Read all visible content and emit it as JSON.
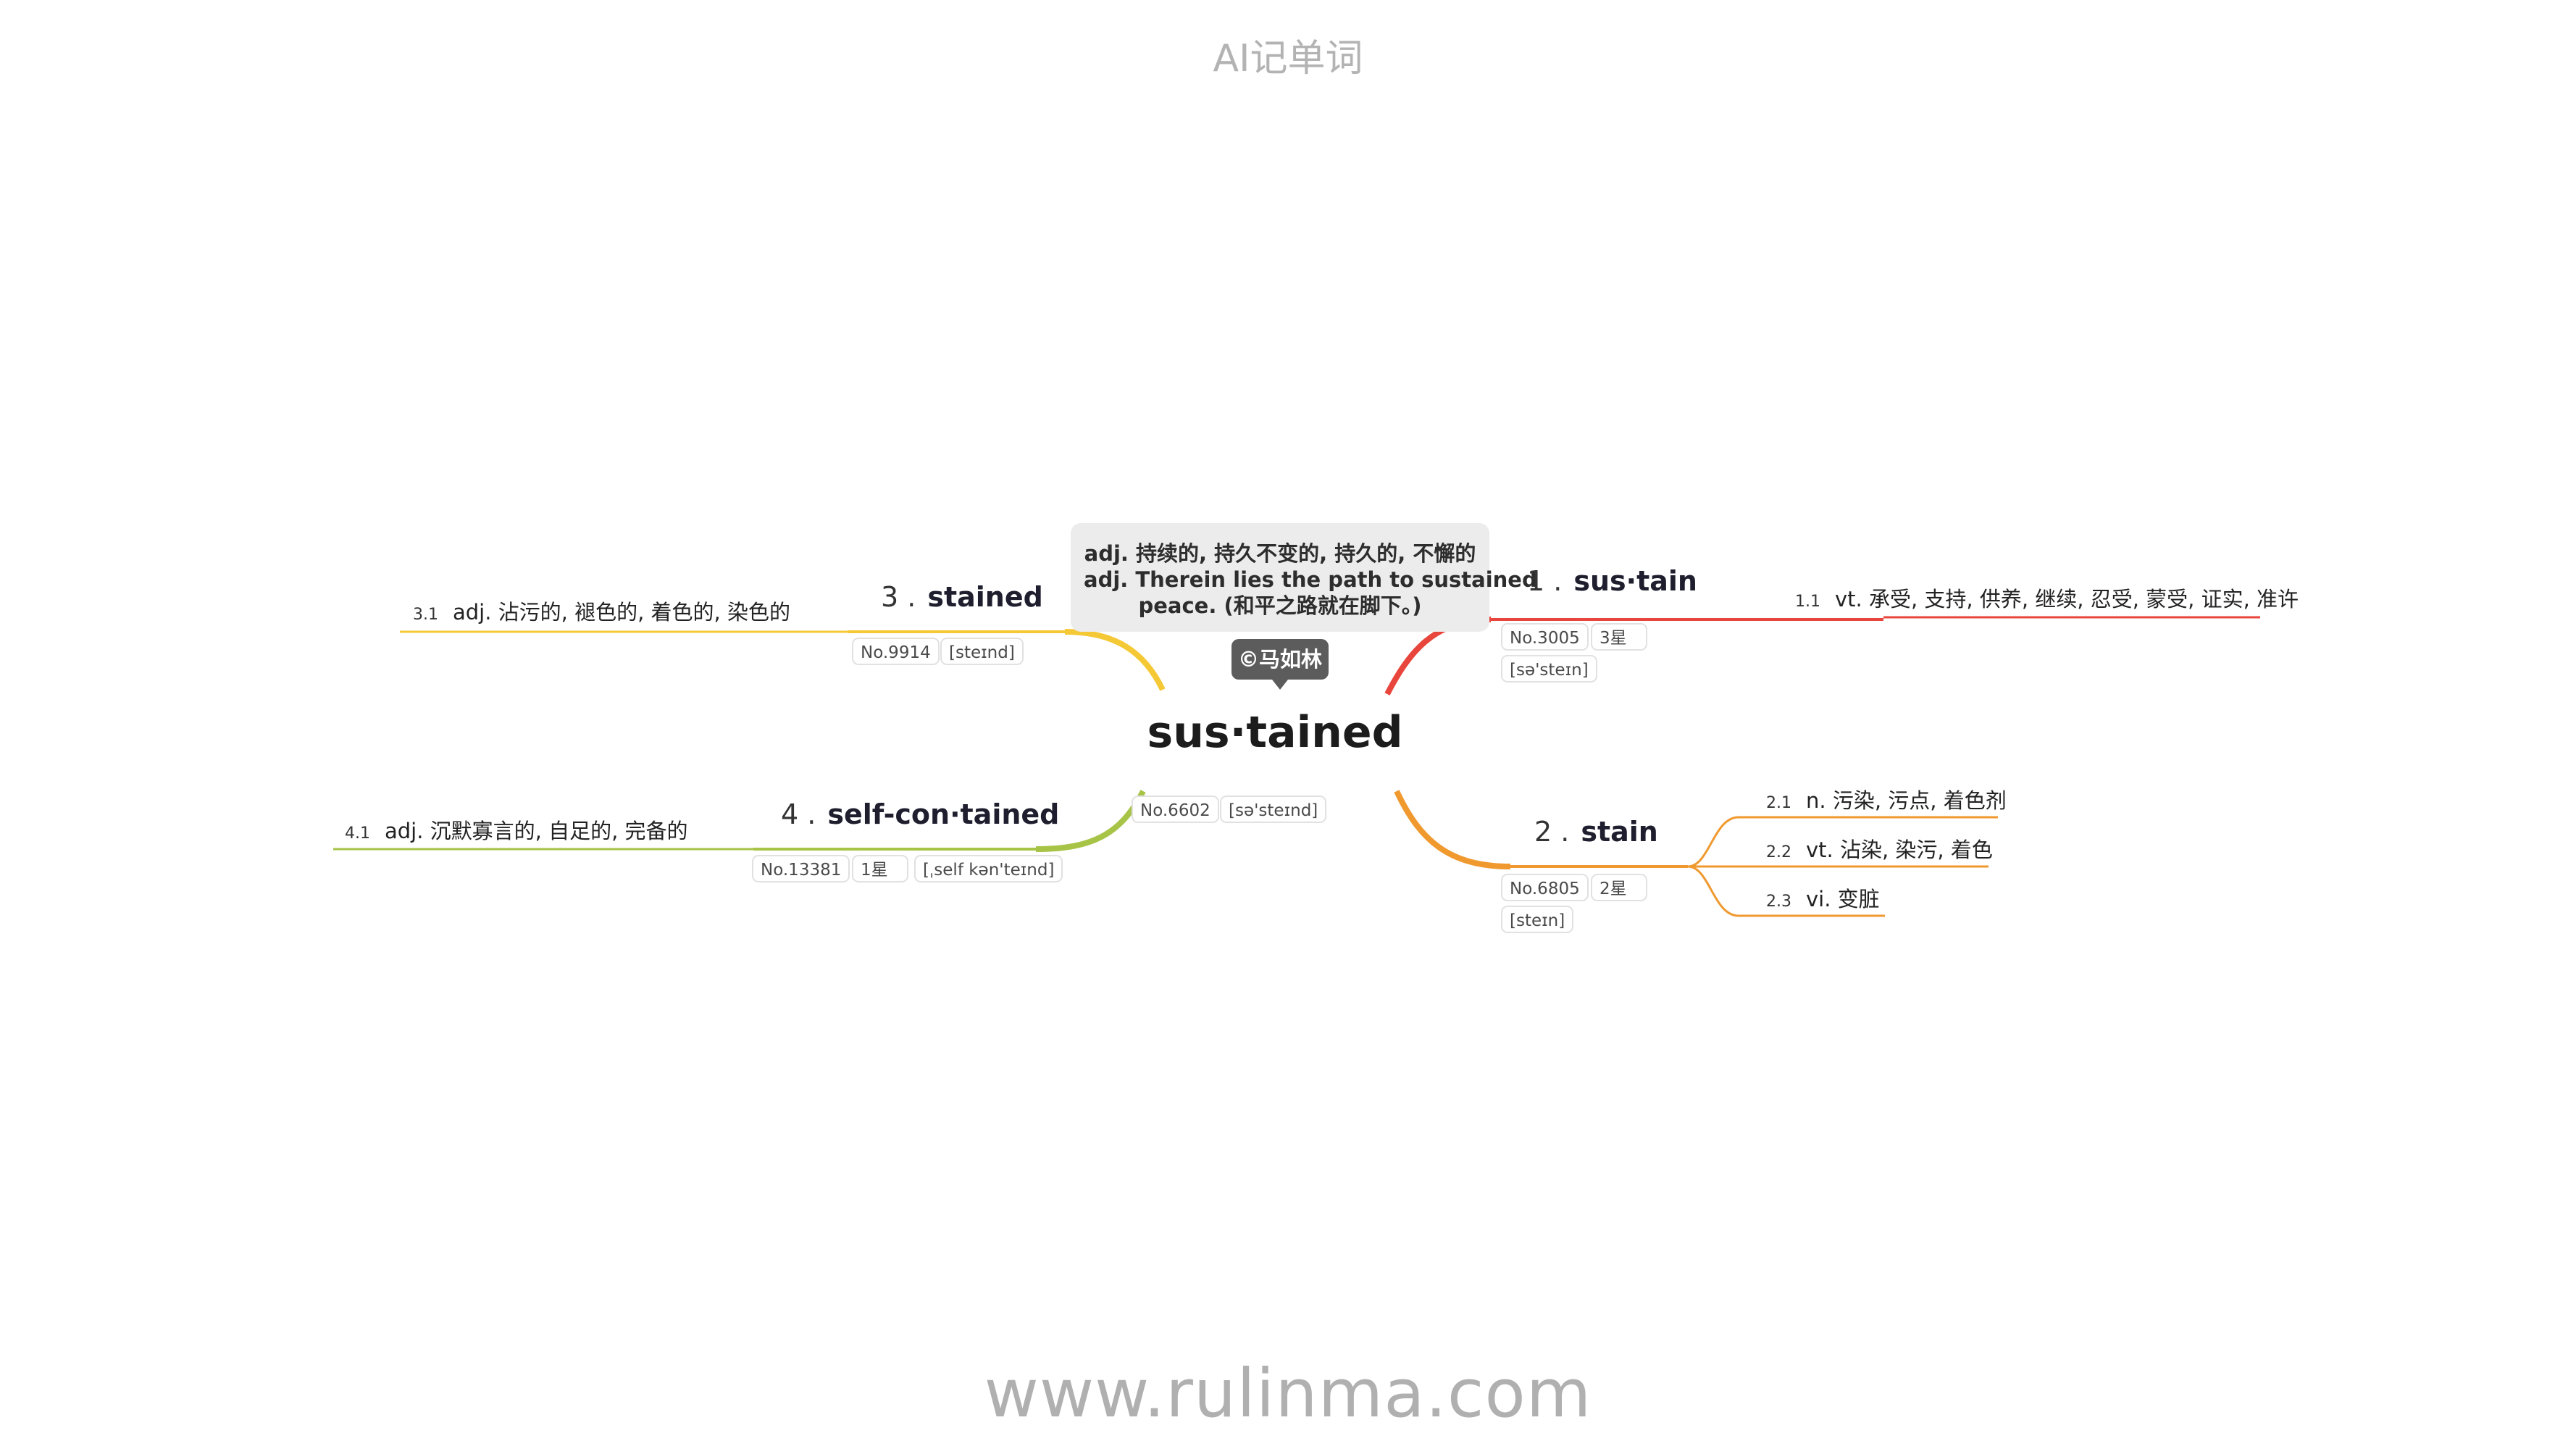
{
  "header": {
    "title": "AI记单词"
  },
  "footer": {
    "url": "www.rulinma.com"
  },
  "central": {
    "word": "sus·tained",
    "number": "No.6602",
    "phonetic": "[sə'steɪnd]",
    "tooltip": {
      "line1": "adj. 持续的, 持久不变的, 持久的, 不懈的",
      "line2": "adj. Therein lies the path to sustained",
      "line3": "peace. (和平之路就在脚下。)"
    },
    "author": "©马如林"
  },
  "branches": [
    {
      "index": "1 .",
      "word": "sus·tain",
      "color": "#e8453c",
      "tags": {
        "number": "No.3005",
        "stars": "3星",
        "phonetic": "[sə'steɪn]"
      },
      "definitions": [
        {
          "num": "1.1",
          "text": "vt. 承受, 支持, 供养, 继续, 忍受, 蒙受, 证实, 准许"
        }
      ]
    },
    {
      "index": "2 .",
      "word": "stain",
      "color": "#f0992f",
      "tags": {
        "number": "No.6805",
        "stars": "2星",
        "phonetic": "[steɪn]"
      },
      "definitions": [
        {
          "num": "2.1",
          "text": "n. 污染, 污点, 着色剂"
        },
        {
          "num": "2.2",
          "text": "vt. 沾染, 染污, 着色"
        },
        {
          "num": "2.3",
          "text": "vi. 变脏"
        }
      ]
    },
    {
      "index": "3 .",
      "word": "stained",
      "color": "#f5c936",
      "tags": {
        "number": "No.9914",
        "phonetic": "[steɪnd]"
      },
      "definitions": [
        {
          "num": "3.1",
          "text": "adj. 沾污的, 褪色的, 着色的, 染色的"
        }
      ]
    },
    {
      "index": "4 .",
      "word": "self-con·tained",
      "color": "#a7c447",
      "tags": {
        "number": "No.13381",
        "stars": "1星",
        "phonetic": "[ˌself kən'teɪnd]"
      },
      "definitions": [
        {
          "num": "4.1",
          "text": "adj. 沉默寡言的, 自足的, 完备的"
        }
      ]
    }
  ]
}
